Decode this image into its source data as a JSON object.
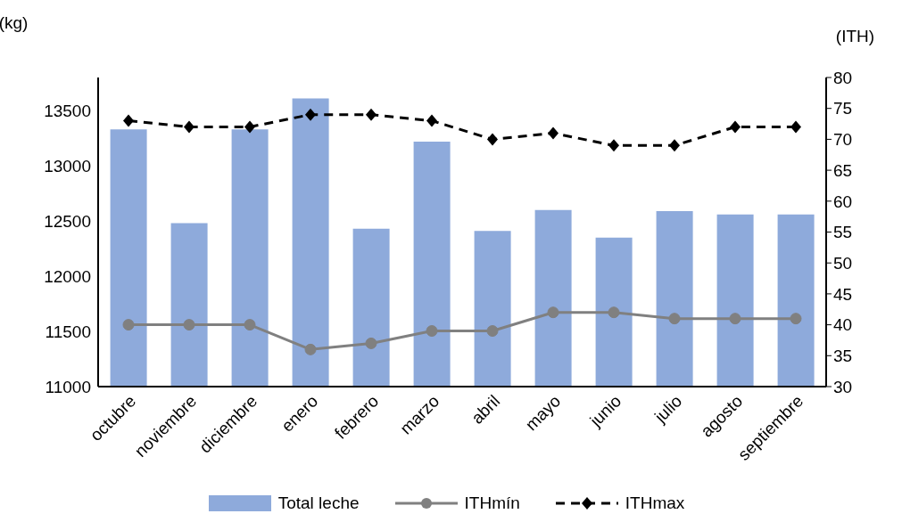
{
  "chart_data": {
    "type": "bar",
    "ylabel": "(kg)",
    "y2label": "(ITH)",
    "categories": [
      "octubre",
      "noviembre",
      "diciembre",
      "enero",
      "febrero",
      "marzo",
      "abril",
      "mayo",
      "junio",
      "julio",
      "agosto",
      "septiembre"
    ],
    "series": [
      {
        "name": "Total leche",
        "color": "#8eaadb",
        "values": [
          13330,
          12480,
          13330,
          13610,
          12430,
          13220,
          12410,
          12600,
          12350,
          12590,
          12560,
          12560
        ]
      },
      {
        "name": "ITHmín",
        "type": "line",
        "axis": "y2",
        "color": "#808080",
        "marker": "circle",
        "line_style": "solid",
        "values": [
          40,
          40,
          40,
          36,
          37,
          39,
          39,
          42,
          42,
          41,
          41,
          41
        ]
      },
      {
        "name": "ITHmax",
        "type": "line",
        "axis": "y2",
        "color": "#000000",
        "marker": "diamond",
        "line_style": "dashed",
        "values": [
          73,
          72,
          72,
          74,
          74,
          73,
          70,
          71,
          69,
          69,
          72,
          72
        ]
      }
    ],
    "ylim": [
      11000,
      13800
    ],
    "yticks": [
      11000,
      11500,
      12000,
      12500,
      13000,
      13500
    ],
    "y2lim": [
      30,
      80
    ],
    "y2ticks": [
      30,
      35,
      40,
      45,
      50,
      55,
      60,
      65,
      70,
      75,
      80
    ],
    "grid": false,
    "legend": "bottom"
  }
}
